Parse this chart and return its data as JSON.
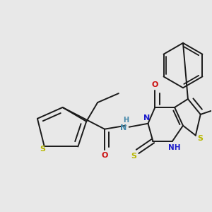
{
  "bg_color": "#e8e8e8",
  "bond_color": "#1a1a1a",
  "figsize": [
    3.0,
    3.0
  ],
  "dpi": 100,
  "colors": {
    "S": "#b8b800",
    "N": "#1a1acc",
    "NH": "#4488aa",
    "O": "#cc1111",
    "C": "#1a1a1a"
  }
}
